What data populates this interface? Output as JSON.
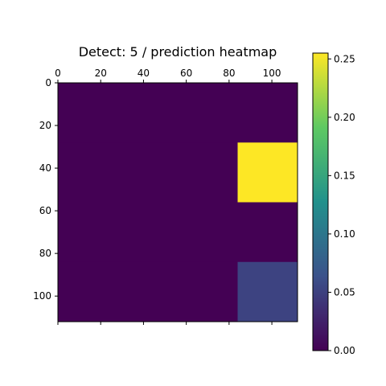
{
  "chart_data": {
    "type": "heatmap",
    "title": "Detect: 5 / prediction heatmap",
    "xlabel": "",
    "ylabel": "",
    "grid": false,
    "x_range": [
      0,
      112
    ],
    "y_range": [
      0,
      112
    ],
    "x_ticks": [
      0,
      20,
      40,
      60,
      80,
      100
    ],
    "y_ticks": [
      0,
      20,
      40,
      60,
      80,
      100
    ],
    "x_tick_labels": [
      "0",
      "20",
      "40",
      "60",
      "80",
      "100"
    ],
    "y_tick_labels": [
      "0",
      "20",
      "40",
      "60",
      "80",
      "100"
    ],
    "bottom_x_ticks": [
      0,
      20,
      40,
      60,
      80,
      100
    ],
    "rows": 4,
    "cols": 4,
    "values": [
      [
        0,
        0,
        0,
        0
      ],
      [
        0,
        0,
        0,
        0.255
      ],
      [
        0,
        0,
        0,
        0
      ],
      [
        0,
        0,
        0,
        0.052
      ]
    ],
    "colormap": "viridis",
    "colormap_stops": [
      "#440154",
      "#3b528b",
      "#21918c",
      "#5ec962",
      "#fde725"
    ],
    "colorbar": {
      "min": 0,
      "max": 0.255,
      "ticks": [
        0,
        0.05,
        0.1,
        0.15,
        0.2,
        0.25
      ],
      "tick_labels": [
        "0.00",
        "0.05",
        "0.10",
        "0.15",
        "0.20",
        "0.25"
      ]
    }
  }
}
